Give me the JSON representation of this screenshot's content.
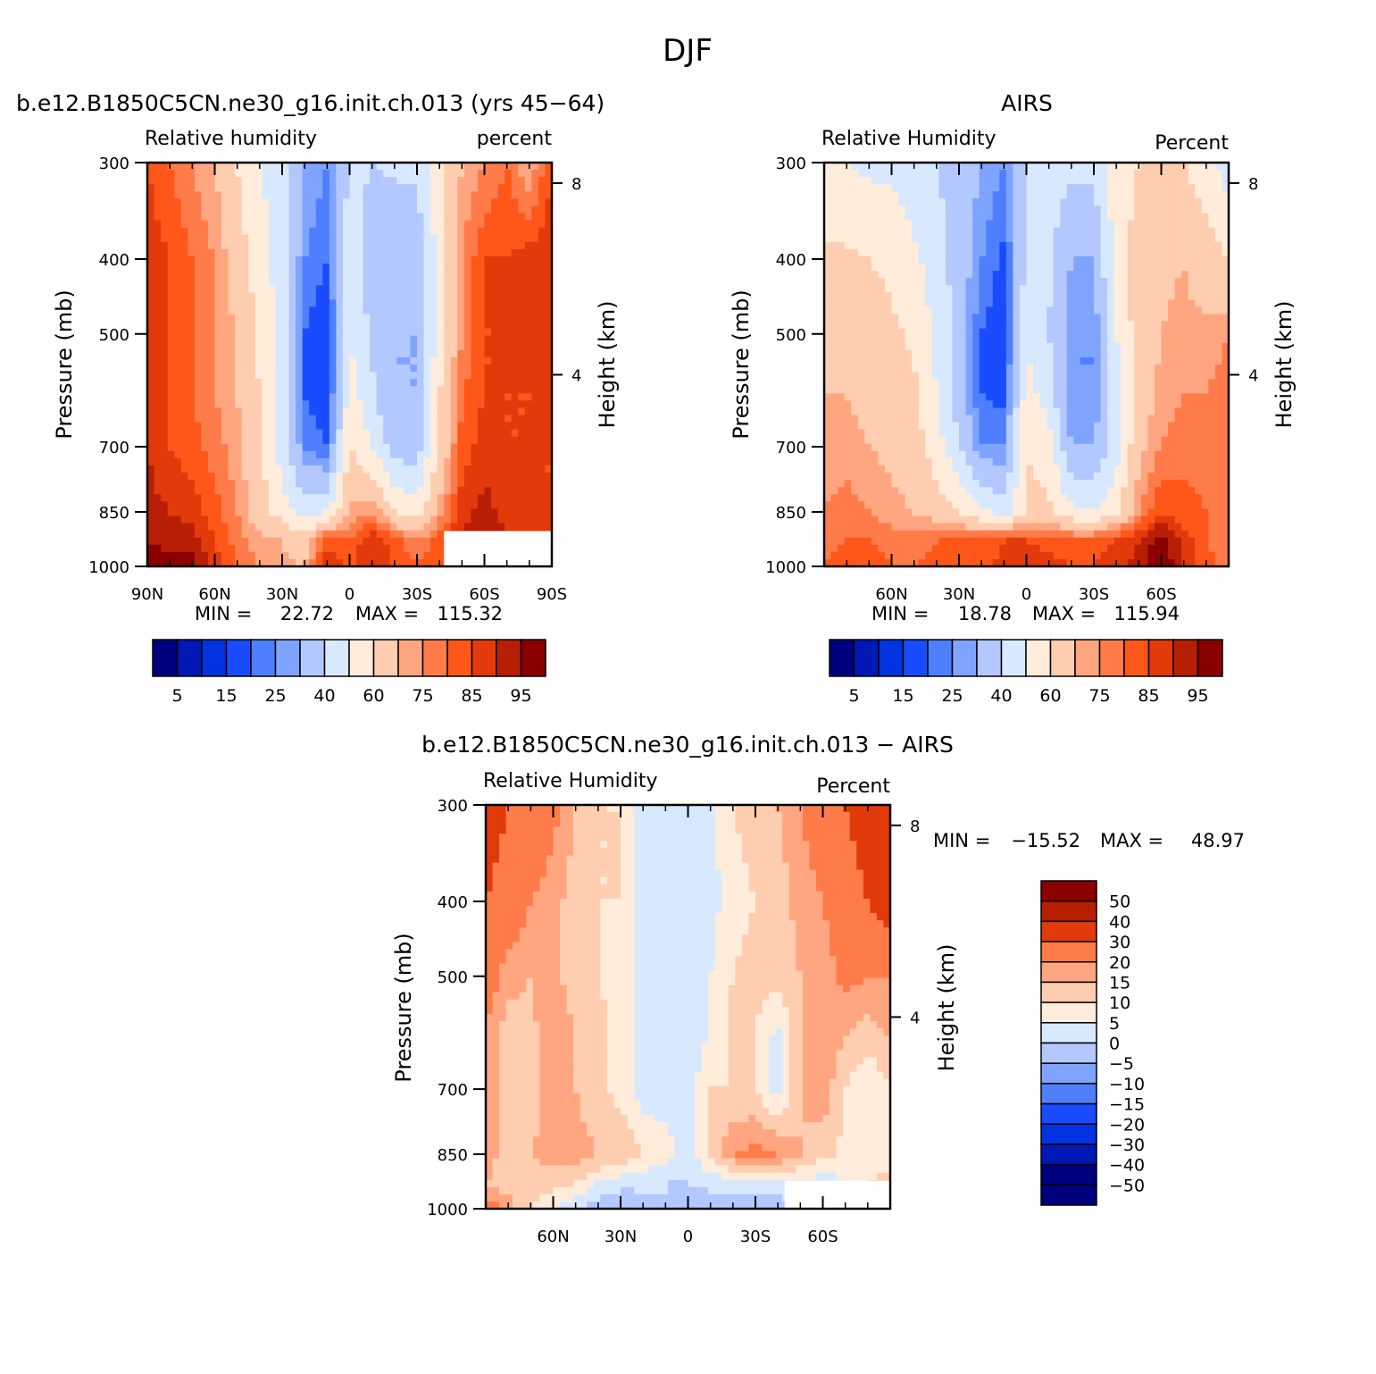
{
  "figure": {
    "title": "DJF"
  },
  "palettes": {
    "rh": [
      "#00007f",
      "#0018b4",
      "#0033e0",
      "#1a4cff",
      "#4d7fff",
      "#7fa4ff",
      "#b2c8ff",
      "#d8e9ff",
      "#ffecdb",
      "#ffcdb0",
      "#ffa680",
      "#ff7c4a",
      "#ff5719",
      "#e23a0a",
      "#b71f05",
      "#8a0000"
    ],
    "diff": [
      "#8a0000",
      "#b71f05",
      "#e23a0a",
      "#ff7c4a",
      "#ffa680",
      "#ffcdb0",
      "#ffecdb",
      "#d8e9ff",
      "#b2c8ff",
      "#7fa4ff",
      "#4d7fff",
      "#1a4cff",
      "#0033e0",
      "#0018b4",
      "#00007f"
    ]
  },
  "chart_data": [
    {
      "id": "model",
      "type": "heatmap",
      "title": "b.e12.B1850C5CN.ne30_g16.init.ch.013 (yrs 45−64)",
      "left_label": "Relative humidity",
      "right_label": "percent",
      "ylabel": "Pressure (mb)",
      "y2label": "Height (km)",
      "ylim": [
        1000,
        300
      ],
      "yticks": [
        "300",
        "400",
        "500",
        "700",
        "850",
        "1000"
      ],
      "y2ticks": [
        "8",
        "4"
      ],
      "xlim": [
        90,
        -90
      ],
      "xticks": [
        {
          "value": 90,
          "label": "90N"
        },
        {
          "value": 60,
          "label": "60N"
        },
        {
          "value": 30,
          "label": "30N"
        },
        {
          "value": 0,
          "label": "0"
        },
        {
          "value": -30,
          "label": "30S"
        },
        {
          "value": -60,
          "label": "60S"
        },
        {
          "value": -90,
          "label": "90S"
        }
      ],
      "min_label": "MIN =",
      "min_value": "22.72",
      "max_label": "MAX =",
      "max_value": "115.32",
      "colorbar": {
        "orientation": "horizontal",
        "labels": [
          "5",
          "15",
          "25",
          "40",
          "60",
          "75",
          "85",
          "95"
        ]
      },
      "lat": [
        90,
        80,
        70,
        60,
        50,
        40,
        30,
        20,
        10,
        0,
        -10,
        -20,
        -30,
        -40,
        -50,
        -60,
        -70,
        -80,
        -90
      ],
      "lev": [
        300,
        400,
        500,
        600,
        700,
        850,
        925,
        1000
      ],
      "values": [
        [
          85,
          80,
          75,
          70,
          60,
          50,
          45,
          30,
          25,
          42,
          40,
          42,
          42,
          55,
          70,
          75,
          80,
          70,
          85
        ],
        [
          88,
          85,
          80,
          75,
          65,
          55,
          45,
          25,
          20,
          45,
          35,
          30,
          32,
          55,
          75,
          85,
          85,
          88,
          90
        ],
        [
          90,
          85,
          80,
          75,
          70,
          58,
          45,
          20,
          15,
          50,
          38,
          30,
          30,
          55,
          75,
          85,
          85,
          88,
          88
        ],
        [
          88,
          85,
          80,
          75,
          70,
          60,
          45,
          20,
          15,
          55,
          42,
          30,
          30,
          60,
          80,
          85,
          85,
          85,
          88
        ],
        [
          90,
          85,
          82,
          78,
          72,
          62,
          45,
          25,
          20,
          60,
          50,
          35,
          35,
          62,
          82,
          88,
          85,
          85,
          85
        ],
        [
          92,
          90,
          88,
          82,
          75,
          65,
          55,
          45,
          50,
          72,
          75,
          60,
          55,
          72,
          88,
          92,
          88,
          85,
          85
        ],
        [
          95,
          92,
          92,
          85,
          78,
          72,
          70,
          65,
          85,
          80,
          90,
          82,
          75,
          82,
          92,
          95,
          90,
          88,
          85
        ],
        [
          100,
          98,
          98,
          88,
          80,
          75,
          72,
          70,
          88,
          85,
          88,
          85,
          80,
          85,
          90,
          92,
          88,
          85,
          85
        ]
      ],
      "missing": [
        [
          -42,
          -90,
          1000,
          900
        ]
      ]
    },
    {
      "id": "airs",
      "type": "heatmap",
      "title": "AIRS",
      "left_label": "Relative Humidity",
      "right_label": "Percent",
      "ylabel": "Pressure (mb)",
      "y2label": "Height (km)",
      "ylim": [
        1000,
        300
      ],
      "yticks": [
        "300",
        "400",
        "500",
        "700",
        "850",
        "1000"
      ],
      "y2ticks": [
        "8",
        "4"
      ],
      "xlim": [
        90,
        -90
      ],
      "xticks": [
        {
          "value": 60,
          "label": "60N"
        },
        {
          "value": 30,
          "label": "30N"
        },
        {
          "value": 0,
          "label": "0"
        },
        {
          "value": -30,
          "label": "30S"
        },
        {
          "value": -60,
          "label": "60S"
        }
      ],
      "min_label": "MIN =",
      "min_value": "18.78",
      "max_label": "MAX =",
      "max_value": "115.94",
      "colorbar": {
        "orientation": "horizontal",
        "labels": [
          "5",
          "15",
          "25",
          "40",
          "60",
          "75",
          "85",
          "95"
        ]
      },
      "lat": [
        90,
        80,
        70,
        60,
        50,
        40,
        30,
        20,
        10,
        0,
        -10,
        -20,
        -30,
        -40,
        -50,
        -60,
        -70,
        -80,
        -90
      ],
      "lev": [
        300,
        400,
        500,
        600,
        700,
        850,
        925,
        1000
      ],
      "values": [
        [
          50,
          50,
          48,
          48,
          45,
          40,
          35,
          30,
          25,
          40,
          45,
          42,
          42,
          55,
          60,
          62,
          60,
          55,
          45
        ],
        [
          62,
          62,
          60,
          58,
          52,
          45,
          35,
          25,
          18,
          42,
          42,
          30,
          30,
          55,
          65,
          68,
          70,
          65,
          60
        ],
        [
          65,
          65,
          65,
          62,
          58,
          48,
          35,
          20,
          15,
          48,
          40,
          25,
          25,
          50,
          65,
          70,
          72,
          72,
          75
        ],
        [
          70,
          70,
          68,
          65,
          62,
          50,
          35,
          20,
          18,
          55,
          45,
          25,
          25,
          45,
          65,
          72,
          75,
          75,
          78
        ],
        [
          72,
          72,
          70,
          68,
          65,
          55,
          40,
          25,
          25,
          60,
          55,
          30,
          30,
          45,
          68,
          75,
          78,
          78,
          80
        ],
        [
          75,
          78,
          75,
          72,
          70,
          65,
          60,
          52,
          45,
          62,
          62,
          52,
          50,
          58,
          75,
          85,
          82,
          80,
          78
        ],
        [
          78,
          80,
          80,
          78,
          78,
          80,
          82,
          82,
          85,
          85,
          82,
          82,
          82,
          85,
          90,
          98,
          88,
          80,
          78
        ],
        [
          80,
          82,
          82,
          80,
          80,
          82,
          82,
          80,
          88,
          90,
          88,
          85,
          85,
          88,
          92,
          100,
          90,
          82,
          78
        ]
      ],
      "missing": []
    },
    {
      "id": "diff",
      "type": "heatmap",
      "title": "b.e12.B1850C5CN.ne30_g16.init.ch.013 − AIRS",
      "left_label": "Relative Humidity",
      "right_label": "Percent",
      "ylabel": "Pressure (mb)",
      "y2label": "Height (km)",
      "ylim": [
        1000,
        300
      ],
      "yticks": [
        "300",
        "400",
        "500",
        "700",
        "850",
        "1000"
      ],
      "y2ticks": [
        "8",
        "4"
      ],
      "xlim": [
        90,
        -90
      ],
      "xticks": [
        {
          "value": 60,
          "label": "60N"
        },
        {
          "value": 30,
          "label": "30N"
        },
        {
          "value": 0,
          "label": "0"
        },
        {
          "value": -30,
          "label": "30S"
        },
        {
          "value": -60,
          "label": "60S"
        }
      ],
      "min_label": "MIN =",
      "min_value": "−15.52",
      "max_label": "MAX =",
      "max_value": "48.97",
      "colorbar": {
        "orientation": "vertical",
        "labels": [
          "50",
          "40",
          "30",
          "20",
          "15",
          "10",
          "5",
          "0",
          "−5",
          "−10",
          "−15",
          "−20",
          "−30",
          "−40",
          "−50"
        ]
      },
      "lat": [
        90,
        80,
        70,
        60,
        50,
        40,
        30,
        20,
        10,
        0,
        -10,
        -20,
        -30,
        -40,
        -50,
        -60,
        -70,
        -80,
        -90
      ],
      "lev": [
        300,
        400,
        500,
        600,
        700,
        850,
        925,
        1000
      ],
      "values": [
        [
          35,
          30,
          27,
          22,
          15,
          10,
          10,
          2,
          2,
          0,
          3,
          10,
          12,
          15,
          20,
          25,
          30,
          35,
          40
        ],
        [
          30,
          25,
          20,
          17,
          12,
          10,
          10,
          1,
          1,
          2,
          3,
          8,
          10,
          12,
          17,
          20,
          25,
          30,
          35
        ],
        [
          25,
          17,
          15,
          17,
          12,
          10,
          8,
          3,
          3,
          2,
          5,
          10,
          12,
          12,
          15,
          17,
          22,
          20,
          20
        ],
        [
          18,
          12,
          13,
          20,
          15,
          12,
          8,
          2,
          3,
          3,
          5,
          12,
          10,
          3,
          15,
          18,
          15,
          12,
          15
        ],
        [
          20,
          12,
          13,
          17,
          15,
          12,
          8,
          2,
          2,
          2,
          10,
          10,
          10,
          3,
          15,
          18,
          10,
          5,
          10
        ],
        [
          18,
          12,
          15,
          17,
          17,
          15,
          15,
          10,
          8,
          2,
          12,
          20,
          22,
          20,
          15,
          12,
          8,
          5,
          8
        ],
        [
          15,
          12,
          14,
          12,
          10,
          5,
          2,
          1,
          0,
          0,
          1,
          2,
          2,
          5,
          5,
          2,
          5,
          10,
          12
        ],
        [
          25,
          18,
          10,
          5,
          0,
          -3,
          -5,
          -2,
          0,
          -3,
          -2,
          -2,
          -3,
          -5,
          0,
          5,
          10,
          15,
          18
        ]
      ],
      "missing": [
        [
          -43,
          -90,
          1000,
          920
        ]
      ]
    }
  ]
}
